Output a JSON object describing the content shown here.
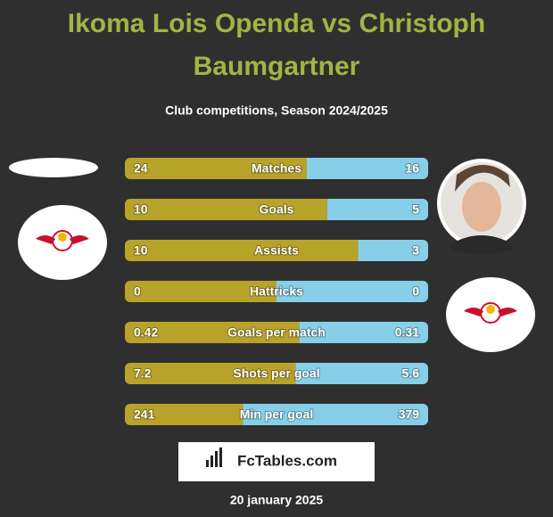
{
  "header": {
    "title_line1": "Ikoma Lois Openda vs Christoph",
    "title_line2": "Baumgartner",
    "subtitle": "Club competitions, Season 2024/2025"
  },
  "chart_data": {
    "type": "comparison",
    "left_color": "#b8a32a",
    "right_color": "#87cfe8",
    "rows": [
      {
        "label": "Matches",
        "left": 24,
        "right": 16
      },
      {
        "label": "Goals",
        "left": 10,
        "right": 5
      },
      {
        "label": "Assists",
        "left": 10,
        "right": 3
      },
      {
        "label": "Hattricks",
        "left": 0,
        "right": 0
      },
      {
        "label": "Goals per match",
        "left": 0.42,
        "right": 0.31
      },
      {
        "label": "Shots per goal",
        "left": 7.2,
        "right": 5.6
      },
      {
        "label": "Min per goal",
        "left": 241,
        "right": 379
      }
    ]
  },
  "footer": {
    "brand": "FcTables.com",
    "date": "20 january 2025"
  }
}
